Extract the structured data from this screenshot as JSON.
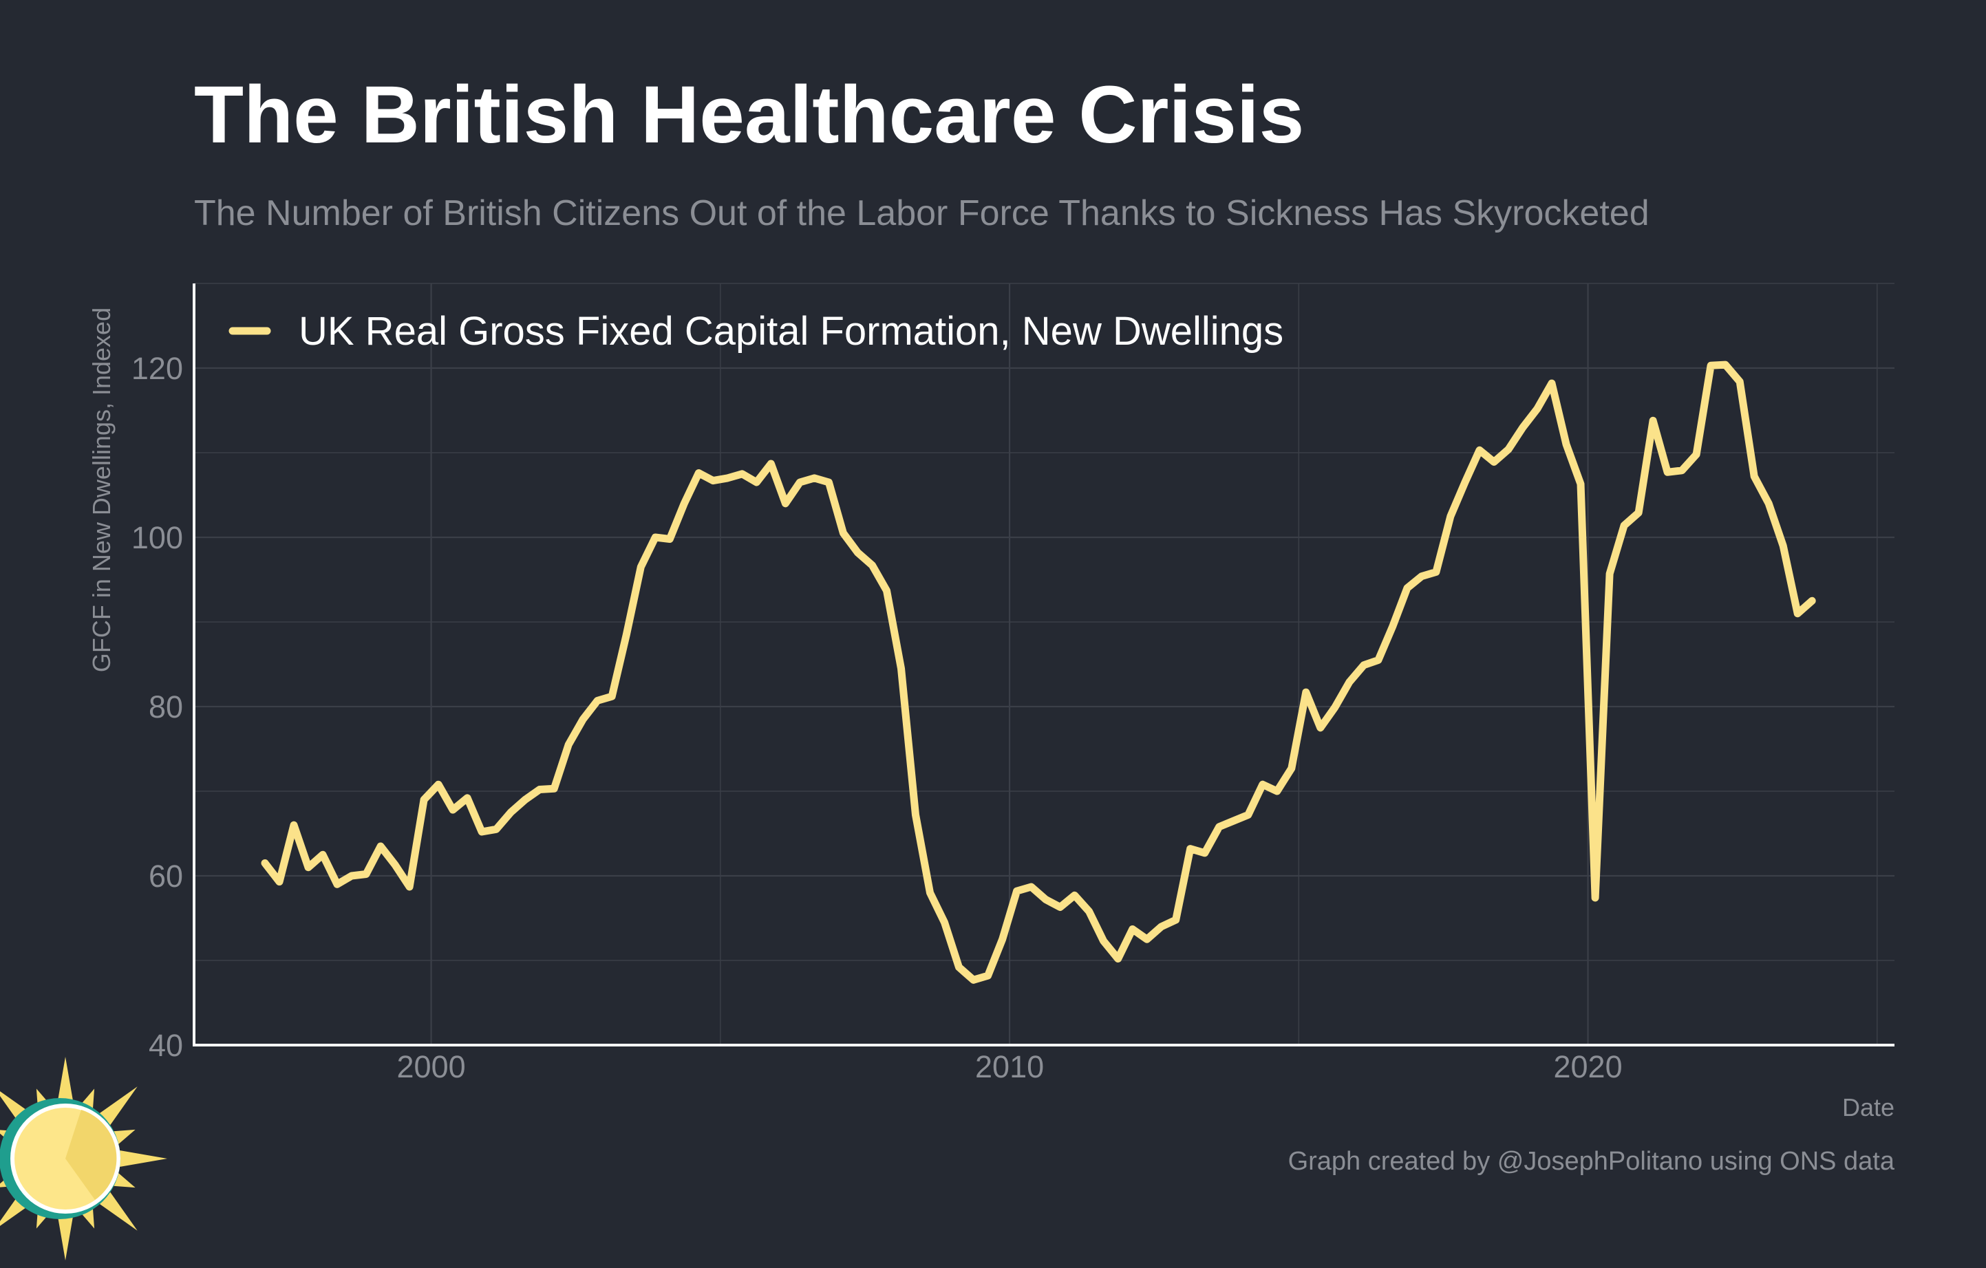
{
  "title": "The British Healthcare Crisis",
  "subtitle": "The Number of British Citizens Out of the Labor Force Thanks to Sickness Has Skyrocketed",
  "caption": "Graph created by @JosephPolitano using ONS data",
  "logo_icon": "sun-logo-icon",
  "colors": {
    "background": "#252932",
    "line": "#fbe28a",
    "grid": "#3b3f48",
    "axis": "#ffffff",
    "muted_text": "#8b8e95",
    "title_text": "#ffffff"
  },
  "chart_data": {
    "type": "line",
    "title": "The British Healthcare Crisis",
    "subtitle": "The Number of British Citizens Out of the Labor Force Thanks to Sickness Has Skyrocketed",
    "xlabel": "Date",
    "ylabel": "GFCF in New Dwellings, Indexed",
    "xlim": [
      1995.9,
      2025.3
    ],
    "ylim": [
      40,
      130
    ],
    "x_ticks": [
      2000,
      2010,
      2020
    ],
    "y_ticks": [
      40,
      60,
      80,
      100,
      120
    ],
    "grid": true,
    "legend_position": "top-left",
    "series": [
      {
        "name": "UK Real Gross Fixed Capital Formation, New Dwellings",
        "color": "#fbe28a",
        "x": [
          "1997 Q1",
          "1997 Q2",
          "1997 Q3",
          "1997 Q4",
          "1998 Q1",
          "1998 Q2",
          "1998 Q3",
          "1998 Q4",
          "1999 Q1",
          "1999 Q2",
          "1999 Q3",
          "1999 Q4",
          "2000 Q1",
          "2000 Q2",
          "2000 Q3",
          "2000 Q4",
          "2001 Q1",
          "2001 Q2",
          "2001 Q3",
          "2001 Q4",
          "2002 Q1",
          "2002 Q2",
          "2002 Q3",
          "2002 Q4",
          "2003 Q1",
          "2003 Q2",
          "2003 Q3",
          "2003 Q4",
          "2004 Q1",
          "2004 Q2",
          "2004 Q3",
          "2004 Q4",
          "2005 Q1",
          "2005 Q2",
          "2005 Q3",
          "2005 Q4",
          "2006 Q1",
          "2006 Q2",
          "2006 Q3",
          "2006 Q4",
          "2007 Q1",
          "2007 Q2",
          "2007 Q3",
          "2007 Q4",
          "2008 Q1",
          "2008 Q2",
          "2008 Q3",
          "2008 Q4",
          "2009 Q1",
          "2009 Q2",
          "2009 Q3",
          "2009 Q4",
          "2010 Q1",
          "2010 Q2",
          "2010 Q3",
          "2010 Q4",
          "2011 Q1",
          "2011 Q2",
          "2011 Q3",
          "2011 Q4",
          "2012 Q1",
          "2012 Q2",
          "2012 Q3",
          "2012 Q4",
          "2013 Q1",
          "2013 Q2",
          "2013 Q3",
          "2013 Q4",
          "2014 Q1",
          "2014 Q2",
          "2014 Q3",
          "2014 Q4",
          "2015 Q1",
          "2015 Q2",
          "2015 Q3",
          "2015 Q4",
          "2016 Q1",
          "2016 Q2",
          "2016 Q3",
          "2016 Q4",
          "2017 Q1",
          "2017 Q2",
          "2017 Q3",
          "2017 Q4",
          "2018 Q1",
          "2018 Q2",
          "2018 Q3",
          "2018 Q4",
          "2019 Q1",
          "2019 Q2",
          "2019 Q3",
          "2019 Q4",
          "2020 Q1",
          "2020 Q2",
          "2020 Q3",
          "2020 Q4",
          "2021 Q1",
          "2021 Q2",
          "2021 Q3",
          "2021 Q4",
          "2022 Q1",
          "2022 Q2",
          "2022 Q3",
          "2022 Q4",
          "2023 Q1",
          "2023 Q2",
          "2023 Q3",
          "2023 Q4"
        ],
        "values": [
          61.5,
          59.3,
          66.0,
          61.0,
          62.5,
          59.0,
          60.0,
          60.2,
          63.5,
          61.3,
          58.7,
          69.0,
          70.8,
          67.8,
          69.2,
          65.2,
          65.5,
          67.5,
          69.0,
          70.2,
          70.3,
          75.5,
          78.5,
          80.7,
          81.2,
          88.5,
          96.5,
          100.0,
          99.8,
          104.0,
          107.6,
          106.7,
          107.0,
          107.5,
          106.5,
          108.7,
          104.0,
          106.5,
          107.0,
          106.5,
          100.5,
          98.2,
          96.7,
          93.7,
          84.5,
          67.2,
          58.0,
          54.5,
          49.2,
          47.7,
          48.2,
          52.5,
          58.2,
          58.7,
          57.2,
          56.3,
          57.7,
          55.8,
          52.3,
          50.2,
          53.7,
          52.5,
          54.0,
          54.8,
          63.2,
          62.7,
          65.8,
          66.5,
          67.2,
          70.8,
          70.0,
          72.7,
          81.7,
          77.5,
          79.9,
          82.9,
          84.9,
          85.5,
          89.5,
          94.0,
          95.4,
          95.9,
          102.5,
          106.5,
          110.3,
          108.9,
          110.4,
          113.0,
          115.2,
          118.2,
          111.0,
          106.3,
          57.4,
          95.7,
          101.4,
          102.9,
          113.8,
          107.7,
          107.9,
          109.8,
          120.3,
          120.4,
          118.4,
          107.2,
          104.0,
          99.0,
          91.0,
          92.5
        ]
      }
    ]
  }
}
